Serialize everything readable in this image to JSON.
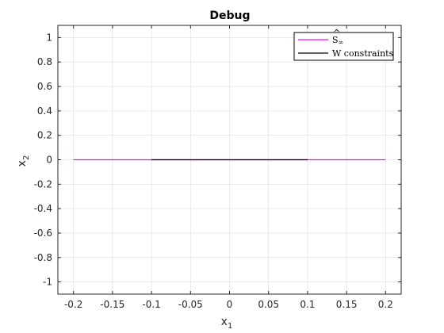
{
  "chart_data": {
    "type": "line",
    "title": "Debug",
    "xlabel": "x",
    "xlabel_sub": "1",
    "ylabel": "x",
    "ylabel_sub": "2",
    "xlim": [
      -0.22,
      0.22
    ],
    "ylim": [
      -1.1,
      1.1
    ],
    "xticks": [
      -0.2,
      -0.15,
      -0.1,
      -0.05,
      0,
      0.05,
      0.1,
      0.15,
      0.2
    ],
    "xtick_labels": [
      "-0.2",
      "-0.15",
      "-0.1",
      "-0.05",
      "0",
      "0.05",
      "0.1",
      "0.15",
      "0.2"
    ],
    "yticks": [
      1,
      0.8,
      0.6,
      0.4,
      0.2,
      0,
      -0.2,
      -0.4,
      -0.6,
      -0.8,
      -1
    ],
    "ytick_labels": [
      "1",
      "0.8",
      "0.6",
      "0.4",
      "0.2",
      "0",
      "-0.2",
      "-0.4",
      "-0.6",
      "-0.8",
      "-1"
    ],
    "grid": true,
    "legend_position": "top-right",
    "series": [
      {
        "name": "Ŝ∞",
        "legend_main": "S",
        "legend_sub": "∞",
        "legend_accent": "^",
        "color": "#ff00ff",
        "x": [
          -0.2,
          0.2
        ],
        "y": [
          0,
          0
        ]
      },
      {
        "name": "W constraints",
        "color": "#000000",
        "x": [
          -0.1,
          0.1
        ],
        "y": [
          0,
          0
        ]
      }
    ]
  }
}
